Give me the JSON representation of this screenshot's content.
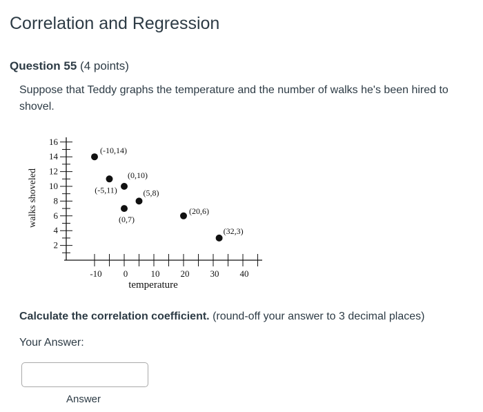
{
  "page": {
    "title": "Correlation and Regression"
  },
  "question": {
    "number_label": "Question 55",
    "points_label": "(4 points)",
    "text": "Suppose that Teddy graphs the temperature and the number of walks he's been hired to shovel.",
    "instruction_bold": "Calculate the correlation coefficient.",
    "instruction_rest": " (round-off your answer to 3 decimal places)",
    "your_answer_label": "Your Answer:",
    "answer_value": "",
    "answer_label": "Answer"
  },
  "chart_data": {
    "type": "scatter",
    "xlabel": "temperature",
    "ylabel": "walks shoveled",
    "x_ticks": [
      "-10",
      "0",
      "10",
      "20",
      "30",
      "40"
    ],
    "y_ticks": [
      "2",
      "4",
      "6",
      "8",
      "10",
      "12",
      "14",
      "16"
    ],
    "xlim": [
      -10,
      40
    ],
    "ylim": [
      0,
      16
    ],
    "points": [
      {
        "x": -10,
        "y": 14,
        "label": "(-10,14)"
      },
      {
        "x": -5,
        "y": 11,
        "label": "(-5,11)"
      },
      {
        "x": 0,
        "y": 10,
        "label": "(0,10)"
      },
      {
        "x": 0,
        "y": 7,
        "label": "(0,7)"
      },
      {
        "x": 5,
        "y": 8,
        "label": "(5,8)"
      },
      {
        "x": 20,
        "y": 6,
        "label": "(20,6)"
      },
      {
        "x": 32,
        "y": 3,
        "label": "(32,3)"
      }
    ],
    "grid": false,
    "legend": "none"
  }
}
